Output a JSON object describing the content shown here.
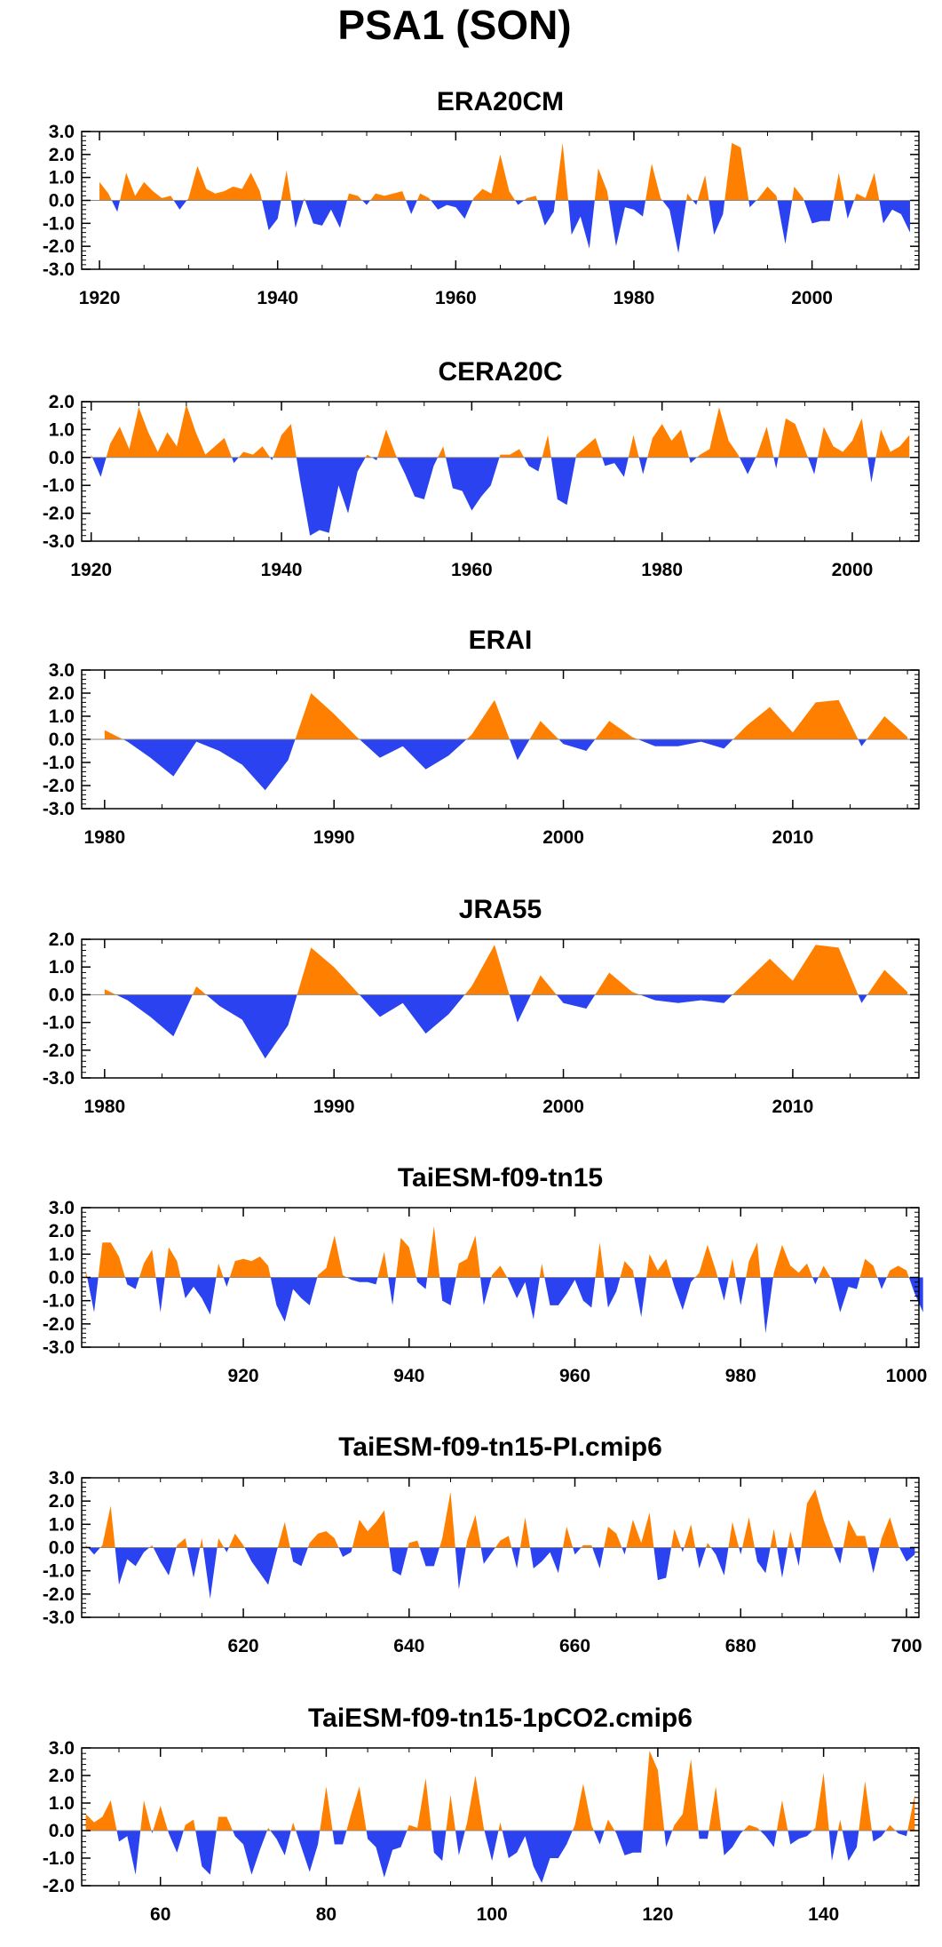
{
  "figure": {
    "title": "PSA1 (SON)",
    "colors": {
      "positive": "#ff8000",
      "negative": "#2a42f0",
      "frame": "#000000"
    }
  },
  "chart_data": [
    {
      "type": "area",
      "title": "ERA20CM",
      "x_start": 1920,
      "x_step": 1,
      "xlim": [
        1918,
        2012
      ],
      "ylim": [
        -3.0,
        3.0
      ],
      "xticks": [
        1920,
        1940,
        1960,
        1980,
        2000
      ],
      "yticks": [
        3.0,
        2.0,
        1.0,
        0.0,
        -1.0,
        -2.0,
        -3.0
      ],
      "series": [
        {
          "values": [
            0.8,
            0.3,
            -0.5,
            1.2,
            0.2,
            0.8,
            0.4,
            0.1,
            0.2,
            -0.4,
            0.1,
            1.5,
            0.5,
            0.3,
            0.4,
            0.6,
            0.5,
            1.2,
            0.4,
            -1.3,
            -0.8,
            1.3,
            -1.2,
            0.1,
            -1.0,
            -1.1,
            -0.4,
            -1.2,
            0.3,
            0.2,
            -0.2,
            0.3,
            0.2,
            0.3,
            0.4,
            -0.6,
            0.3,
            0.1,
            -0.4,
            -0.2,
            -0.3,
            -0.8,
            0.1,
            0.5,
            0.3,
            2.0,
            0.4,
            -0.2,
            0.1,
            0.2,
            -1.1,
            -0.5,
            2.5,
            -1.5,
            -0.7,
            -2.1,
            1.4,
            0.4,
            -2.0,
            -0.3,
            -0.4,
            -0.7,
            1.6,
            0.1,
            -0.4,
            -2.3,
            0.3,
            -0.2,
            1.1,
            -1.5,
            -0.6,
            2.5,
            2.3,
            -0.3,
            0.1,
            0.6,
            0.2,
            -1.9,
            0.6,
            0.1,
            -1.0,
            -0.9,
            -0.9,
            1.2,
            -0.8,
            0.3,
            0.1,
            1.2,
            -1.0,
            -0.4,
            -0.6,
            -1.4
          ]
        }
      ]
    },
    {
      "type": "area",
      "title": "CERA20C",
      "x_start": 1920,
      "x_step": 1,
      "xlim": [
        1919,
        2007
      ],
      "ylim": [
        -3.0,
        2.0
      ],
      "xticks": [
        1920,
        1940,
        1960,
        1980,
        2000
      ],
      "yticks": [
        2.0,
        1.0,
        0.0,
        -1.0,
        -2.0,
        -3.0
      ],
      "series": [
        {
          "values": [
            0.1,
            -0.7,
            0.5,
            1.1,
            0.3,
            1.8,
            0.9,
            0.2,
            0.9,
            0.4,
            1.9,
            0.9,
            0.1,
            0.4,
            0.7,
            -0.2,
            0.2,
            0.1,
            0.4,
            -0.1,
            0.8,
            1.2,
            -0.9,
            -2.8,
            -2.6,
            -2.7,
            -1.0,
            -2.0,
            -0.5,
            0.1,
            -0.1,
            1.0,
            0.1,
            -0.6,
            -1.4,
            -1.5,
            -0.3,
            0.4,
            -1.1,
            -1.2,
            -1.9,
            -1.4,
            -1.0,
            0.1,
            0.1,
            0.3,
            -0.3,
            -0.5,
            0.8,
            -1.5,
            -1.7,
            0.1,
            0.4,
            0.7,
            -0.3,
            -0.2,
            -0.7,
            0.8,
            -0.6,
            0.7,
            1.2,
            0.6,
            1.0,
            -0.2,
            0.1,
            0.3,
            1.8,
            0.6,
            0.1,
            -0.6,
            0.1,
            1.1,
            -0.4,
            1.4,
            1.2,
            0.3,
            -0.6,
            1.1,
            0.4,
            0.2,
            0.6,
            1.4,
            -0.9,
            1.0,
            0.2,
            0.4,
            0.8
          ]
        }
      ]
    },
    {
      "type": "area",
      "title": "ERAI",
      "x_start": 1980,
      "x_step": 1,
      "xlim": [
        1979,
        2015.5
      ],
      "ylim": [
        -3.0,
        3.0
      ],
      "xticks": [
        1980,
        1990,
        2000,
        2010
      ],
      "yticks": [
        3.0,
        2.0,
        1.0,
        0.0,
        -1.0,
        -2.0,
        -3.0
      ],
      "series": [
        {
          "values": [
            0.4,
            -0.1,
            -0.8,
            -1.6,
            -0.1,
            -0.5,
            -1.1,
            -2.2,
            -0.9,
            2.0,
            1.1,
            0.1,
            -0.8,
            -0.3,
            -1.3,
            -0.7,
            0.2,
            1.7,
            -0.9,
            0.8,
            -0.2,
            -0.5,
            0.8,
            0.1,
            -0.3,
            -0.3,
            -0.1,
            -0.4,
            0.6,
            1.4,
            0.3,
            1.6,
            1.7,
            -0.3,
            1.0,
            0.1
          ]
        }
      ]
    },
    {
      "type": "area",
      "title": "JRA55",
      "x_start": 1980,
      "x_step": 1,
      "xlim": [
        1979,
        2015.5
      ],
      "ylim": [
        -3.0,
        2.0
      ],
      "xticks": [
        1980,
        1990,
        2000,
        2010
      ],
      "yticks": [
        2.0,
        1.0,
        0.0,
        -1.0,
        -2.0,
        -3.0
      ],
      "series": [
        {
          "values": [
            0.2,
            -0.2,
            -0.8,
            -1.5,
            0.3,
            -0.4,
            -0.9,
            -2.3,
            -1.1,
            1.7,
            1.0,
            0.1,
            -0.8,
            -0.3,
            -1.4,
            -0.7,
            0.3,
            1.8,
            -1.0,
            0.7,
            -0.3,
            -0.5,
            0.8,
            0.1,
            -0.2,
            -0.3,
            -0.2,
            -0.3,
            0.5,
            1.3,
            0.5,
            1.8,
            1.7,
            -0.3,
            0.9,
            0.1
          ]
        }
      ]
    },
    {
      "type": "area",
      "title": "TaiESM-f09-tn15",
      "x_start": 901,
      "x_step": 1,
      "xlim": [
        900.5,
        1001.5
      ],
      "ylim": [
        -3.0,
        3.0
      ],
      "xticks": [
        920,
        940,
        960,
        980,
        1000
      ],
      "yticks": [
        3.0,
        2.0,
        1.0,
        0.0,
        -1.0,
        -2.0,
        -3.0
      ],
      "series": [
        {
          "values": [
            0.3,
            -1.5,
            1.5,
            1.5,
            0.9,
            -0.3,
            -0.5,
            0.6,
            1.2,
            -1.5,
            1.3,
            0.7,
            -0.9,
            -0.4,
            -0.9,
            -1.6,
            0.6,
            -0.4,
            0.7,
            0.8,
            0.7,
            0.9,
            0.5,
            -1.2,
            -1.9,
            -0.5,
            -0.9,
            -1.2,
            0.1,
            0.4,
            1.8,
            0.1,
            -0.1,
            -0.2,
            -0.2,
            -0.3,
            1.1,
            -1.2,
            1.7,
            1.3,
            -0.2,
            -0.5,
            2.2,
            -1.0,
            -1.2,
            0.6,
            0.8,
            1.8,
            -1.2,
            0.1,
            0.5,
            -0.1,
            -0.9,
            -0.2,
            -1.8,
            0.6,
            -1.2,
            -1.2,
            -0.7,
            -0.1,
            -1.0,
            -1.3,
            1.5,
            -1.3,
            -0.6,
            0.7,
            0.3,
            -1.7,
            1.0,
            0.3,
            0.8,
            -0.4,
            -1.4,
            -0.2,
            0.2,
            1.4,
            0.3,
            -1.0,
            0.8,
            -1.2,
            0.7,
            1.5,
            -2.4,
            0.2,
            1.4,
            0.5,
            0.2,
            0.6,
            -0.3,
            0.5,
            -0.1,
            -1.5,
            -0.4,
            -0.5,
            0.8,
            0.5,
            -0.5,
            0.3,
            0.5,
            0.3,
            -0.7,
            -1.5
          ]
        }
      ]
    },
    {
      "type": "area",
      "title": "TaiESM-f09-tn15-PI.cmip6",
      "x_start": 601,
      "x_step": 1,
      "xlim": [
        600.5,
        701.5
      ],
      "ylim": [
        -3.0,
        3.0
      ],
      "xticks": [
        620,
        640,
        660,
        680,
        700
      ],
      "yticks": [
        3.0,
        2.0,
        1.0,
        0.0,
        -1.0,
        -2.0,
        -3.0
      ],
      "series": [
        {
          "values": [
            0.1,
            -0.3,
            0.1,
            1.8,
            -1.6,
            -0.5,
            -0.8,
            -0.2,
            0.1,
            -0.6,
            -1.2,
            0.1,
            0.4,
            -1.3,
            0.4,
            -2.2,
            0.4,
            -0.2,
            0.6,
            0.1,
            -0.6,
            -1.1,
            -1.6,
            -0.2,
            1.1,
            -0.6,
            -0.8,
            0.2,
            0.6,
            0.7,
            0.4,
            -0.4,
            -0.2,
            1.2,
            0.7,
            1.1,
            1.6,
            -1.0,
            -1.2,
            0.2,
            0.3,
            -0.8,
            -0.8,
            0.4,
            2.4,
            -1.8,
            0.3,
            1.4,
            -0.7,
            -0.2,
            0.3,
            0.5,
            -0.9,
            1.3,
            -0.9,
            -0.6,
            -0.2,
            -1.1,
            0.9,
            -0.3,
            0.1,
            0.1,
            -0.9,
            0.9,
            0.6,
            -0.3,
            1.2,
            0.2,
            1.5,
            -1.4,
            -1.3,
            0.8,
            -0.2,
            1.0,
            -0.9,
            0.2,
            -0.3,
            -1.2,
            1.1,
            -0.3,
            1.3,
            -0.6,
            -1.1,
            0.8,
            -1.3,
            0.7,
            -0.8,
            1.9,
            2.5,
            1.2,
            0.2,
            -0.7,
            1.2,
            0.5,
            0.5,
            -1.1,
            0.4,
            1.3,
            0.1,
            -0.6,
            -0.3
          ]
        }
      ]
    },
    {
      "type": "area",
      "title": "TaiESM-f09-tn15-1pCO2.cmip6",
      "x_start": 51,
      "x_step": 1,
      "xlim": [
        50.5,
        151.5
      ],
      "ylim": [
        -2.0,
        3.0
      ],
      "xticks": [
        60,
        80,
        100,
        120,
        140
      ],
      "yticks": [
        3.0,
        2.0,
        1.0,
        0.0,
        -1.0,
        -2.0
      ],
      "series": [
        {
          "values": [
            0.6,
            0.3,
            0.5,
            1.1,
            -0.4,
            -0.2,
            -1.6,
            1.1,
            -0.1,
            0.9,
            -0.1,
            -0.8,
            0.2,
            0.4,
            -1.3,
            -1.6,
            0.5,
            0.5,
            -0.2,
            -0.5,
            -1.6,
            -0.7,
            0.1,
            -0.3,
            -0.9,
            0.3,
            -0.6,
            -1.5,
            -0.5,
            1.6,
            -0.5,
            -0.5,
            0.6,
            1.6,
            -0.3,
            -0.6,
            -1.7,
            -0.7,
            -0.6,
            0.2,
            0.1,
            1.9,
            -0.8,
            -1.1,
            1.3,
            -0.9,
            0.3,
            2.0,
            0.1,
            -1.1,
            0.3,
            -1.0,
            -0.8,
            -0.2,
            -1.3,
            -1.9,
            -1.0,
            -1.0,
            -0.5,
            0.2,
            1.7,
            0.2,
            -0.5,
            0.4,
            -0.1,
            -0.9,
            -0.8,
            -0.8,
            2.9,
            2.2,
            -0.6,
            0.2,
            0.6,
            2.6,
            -0.3,
            -0.3,
            1.6,
            -0.9,
            -0.6,
            -0.1,
            0.2,
            0.1,
            -0.2,
            -0.6,
            1.1,
            -0.5,
            -0.3,
            -0.2,
            0.1,
            2.1,
            -1.1,
            0.4,
            -1.1,
            -0.6,
            1.8,
            -0.4,
            -0.2,
            0.2,
            -0.1,
            -0.2,
            1.3
          ]
        }
      ]
    }
  ]
}
